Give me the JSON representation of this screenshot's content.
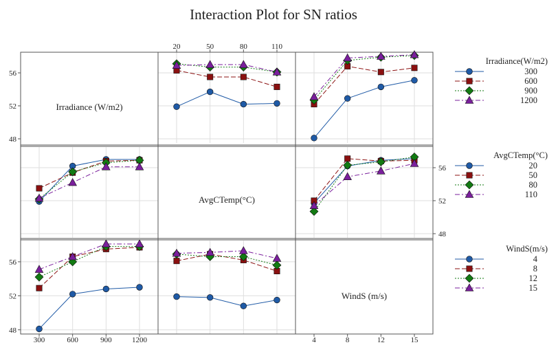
{
  "chart_data": {
    "type": "line",
    "title": "Interaction Plot for SN ratios",
    "factors": [
      {
        "key": "irradiance",
        "label": "Irradiance (W/m2)",
        "legend_title": "Irradiance(W/m2)",
        "levels": [
          300,
          600,
          900,
          1200
        ]
      },
      {
        "key": "temp",
        "label": "AvgCTemp(°C)",
        "legend_title": "AvgCTemp(°C)",
        "levels": [
          20,
          50,
          80,
          110
        ]
      },
      {
        "key": "wind",
        "label": "WindS (m/s)",
        "legend_title": "WindS(m/s)",
        "levels": [
          4,
          8,
          12,
          15
        ]
      }
    ],
    "ylim": [
      47.5,
      58.5
    ],
    "y_ticks": [
      48,
      52,
      56
    ],
    "grid": true,
    "series_colors": [
      "#1f5aa6",
      "#8b1010",
      "#127a12",
      "#7a1f9c"
    ],
    "series_markers": [
      "circle",
      "square",
      "diamond",
      "triangle"
    ],
    "series_dash": [
      "",
      "7,3",
      "2,2",
      "7,3,2,3"
    ],
    "panels": [
      {
        "row": 0,
        "col": 1,
        "x_factor": "temp",
        "trace_factor": "irradiance",
        "series": [
          {
            "level": 300,
            "values": [
              51.9,
              53.7,
              52.2,
              52.3
            ]
          },
          {
            "level": 600,
            "values": [
              56.3,
              55.5,
              55.5,
              54.3
            ]
          },
          {
            "level": 900,
            "values": [
              57.1,
              56.7,
              56.7,
              56.1
            ]
          },
          {
            "level": 1200,
            "values": [
              56.9,
              57.0,
              57.0,
              56.1
            ]
          }
        ]
      },
      {
        "row": 0,
        "col": 2,
        "x_factor": "wind",
        "trace_factor": "irradiance",
        "series": [
          {
            "level": 300,
            "values": [
              48.1,
              52.9,
              54.3,
              55.1
            ]
          },
          {
            "level": 600,
            "values": [
              52.2,
              56.8,
              56.1,
              56.6
            ]
          },
          {
            "level": 900,
            "values": [
              52.7,
              57.5,
              57.9,
              58.1
            ]
          },
          {
            "level": 1200,
            "values": [
              53.1,
              57.8,
              58.0,
              58.2
            ]
          }
        ]
      },
      {
        "row": 1,
        "col": 0,
        "x_factor": "irradiance",
        "trace_factor": "temp",
        "series": [
          {
            "level": 20,
            "values": [
              51.9,
              56.2,
              57.0,
              57.0
            ]
          },
          {
            "level": 50,
            "values": [
              53.5,
              55.4,
              56.8,
              56.9
            ]
          },
          {
            "level": 80,
            "values": [
              52.2,
              55.5,
              56.6,
              56.9
            ]
          },
          {
            "level": 110,
            "values": [
              52.3,
              54.2,
              56.1,
              56.1
            ]
          }
        ]
      },
      {
        "row": 1,
        "col": 2,
        "x_factor": "wind",
        "trace_factor": "temp",
        "series": [
          {
            "level": 20,
            "values": [
              51.7,
              56.2,
              56.9,
              57.1
            ]
          },
          {
            "level": 50,
            "values": [
              52.0,
              57.1,
              56.8,
              56.9
            ]
          },
          {
            "level": 80,
            "values": [
              50.7,
              56.3,
              56.7,
              57.3
            ]
          },
          {
            "level": 110,
            "values": [
              51.4,
              54.9,
              55.6,
              56.5
            ]
          }
        ]
      },
      {
        "row": 2,
        "col": 0,
        "x_factor": "irradiance",
        "trace_factor": "wind",
        "series": [
          {
            "level": 4,
            "values": [
              48.1,
              52.2,
              52.8,
              53.0
            ]
          },
          {
            "level": 8,
            "values": [
              52.9,
              56.6,
              57.5,
              57.7
            ]
          },
          {
            "level": 12,
            "values": [
              54.2,
              56.0,
              57.8,
              57.8
            ]
          },
          {
            "level": 15,
            "values": [
              55.1,
              56.6,
              58.1,
              58.1
            ]
          }
        ]
      },
      {
        "row": 2,
        "col": 1,
        "x_factor": "temp",
        "trace_factor": "wind",
        "series": [
          {
            "level": 4,
            "values": [
              51.9,
              51.8,
              50.8,
              51.5
            ]
          },
          {
            "level": 8,
            "values": [
              56.1,
              56.9,
              56.2,
              54.9
            ]
          },
          {
            "level": 12,
            "values": [
              56.9,
              56.6,
              56.6,
              55.6
            ]
          },
          {
            "level": 15,
            "values": [
              57.0,
              57.1,
              57.3,
              56.4
            ]
          }
        ]
      }
    ]
  }
}
